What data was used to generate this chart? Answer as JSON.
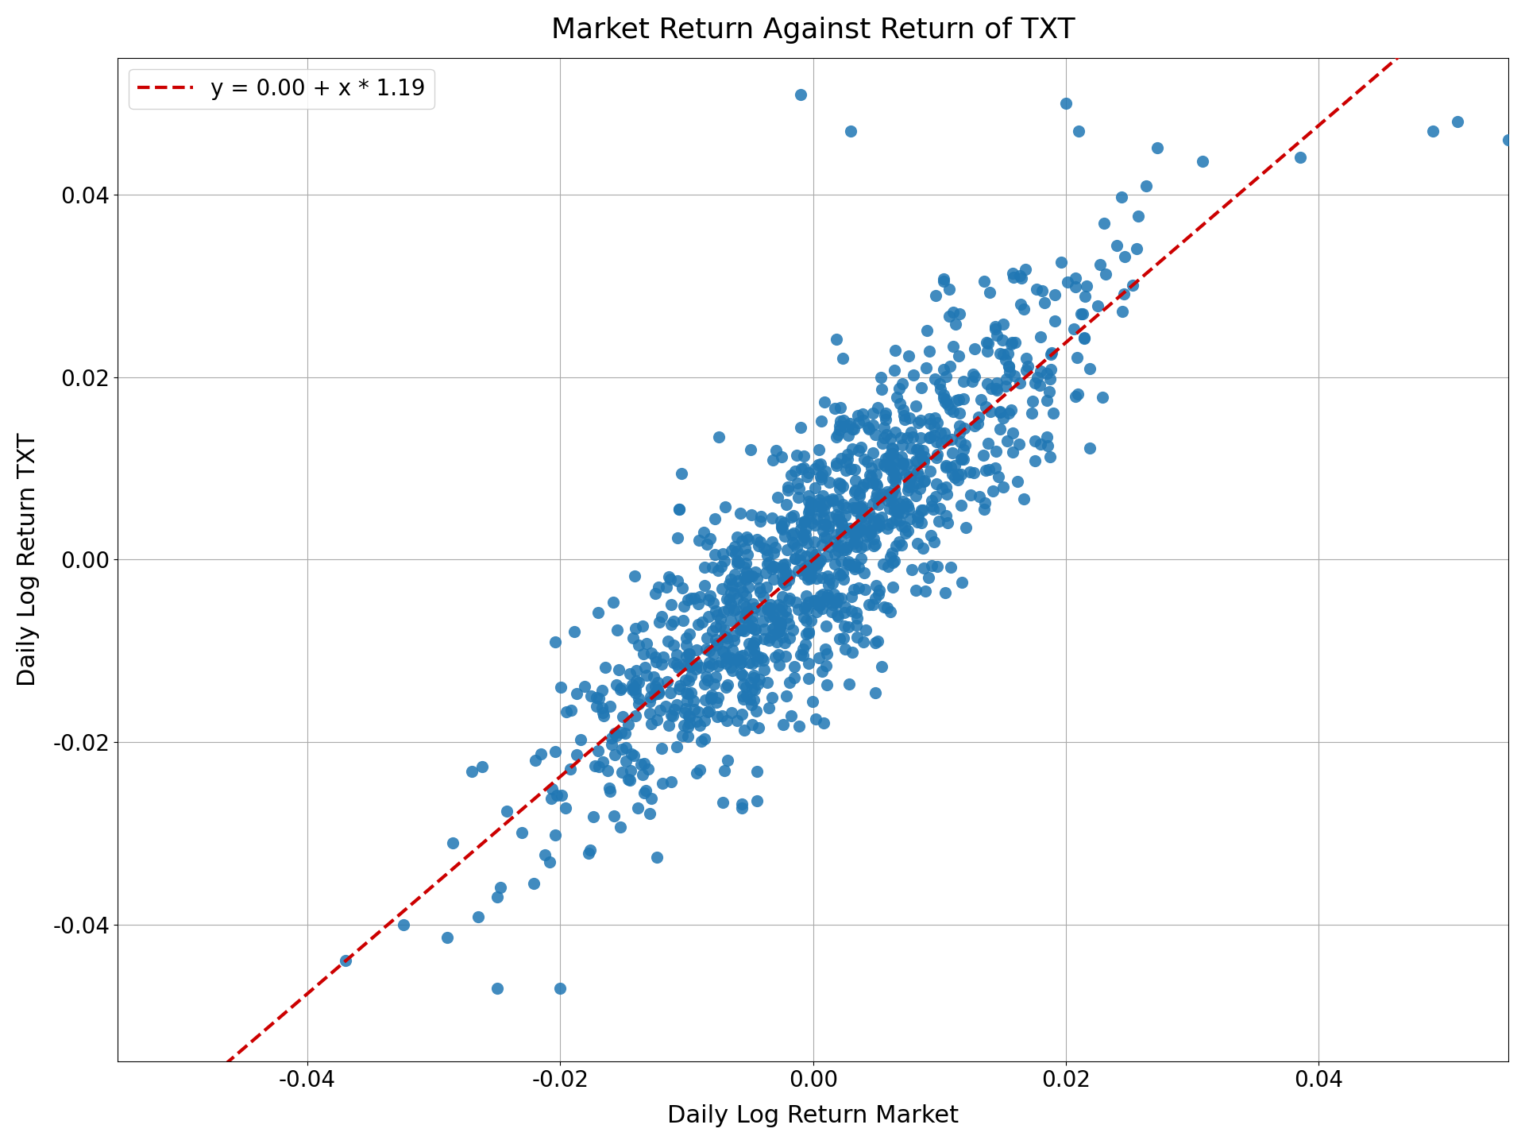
{
  "title": "Market Return Against Return of TXT",
  "xlabel": "Daily Log Return Market",
  "ylabel": "Daily Log Return TXT",
  "legend_label": "y = 0.00 + x * 1.19",
  "intercept": 0.0,
  "slope": 1.19,
  "xlim": [
    -0.055,
    0.055
  ],
  "ylim": [
    -0.055,
    0.055
  ],
  "scatter_color": "#2077b4",
  "line_color": "#cc0000",
  "dot_size": 120,
  "alpha": 0.85,
  "seed": 42,
  "n_points": 1200,
  "market_std": 0.01,
  "noise_std": 0.007,
  "title_fontsize": 26,
  "label_fontsize": 22,
  "tick_fontsize": 20,
  "legend_fontsize": 20,
  "background_color": "#ffffff",
  "grid_color": "#aaaaaa"
}
